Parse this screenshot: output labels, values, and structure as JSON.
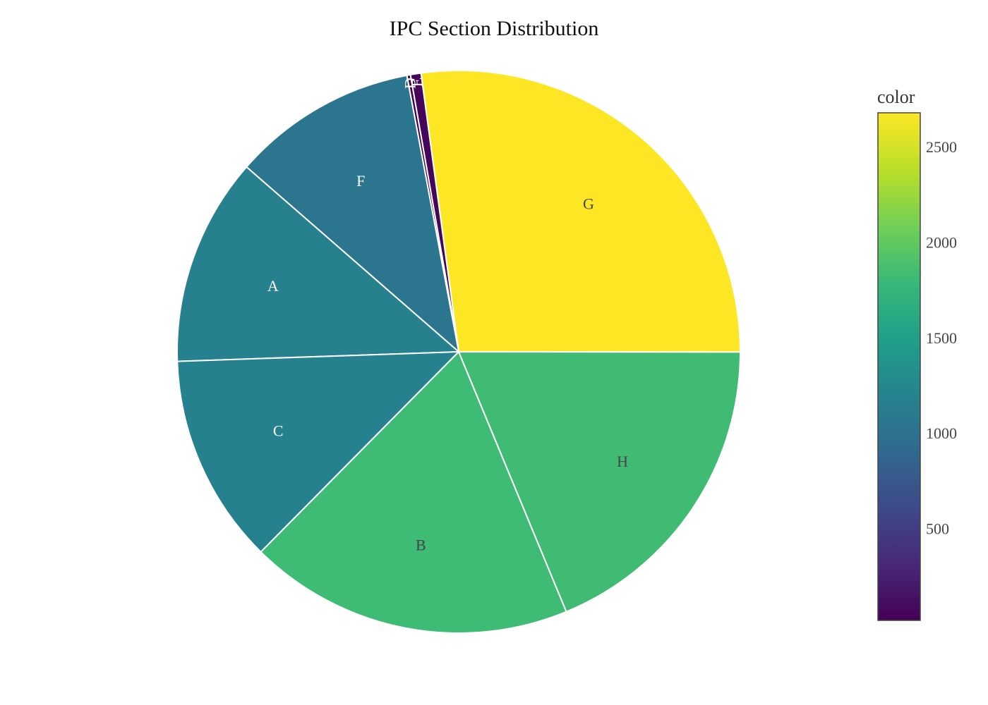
{
  "chart_data": {
    "type": "pie",
    "title": "IPC Section Distribution",
    "slices": [
      {
        "label": "G",
        "value": 2680
      },
      {
        "label": "E",
        "value": 60
      },
      {
        "label": "D",
        "value": 20
      },
      {
        "label": "F",
        "value": 1050
      },
      {
        "label": "A",
        "value": 1180
      },
      {
        "label": "C",
        "value": 1190
      },
      {
        "label": "B",
        "value": 1840
      },
      {
        "label": "H",
        "value": 1850
      }
    ],
    "colorbar": {
      "title": "color",
      "range": [
        20,
        2680
      ],
      "ticks": [
        500,
        1000,
        1500,
        2000,
        2500
      ],
      "colorscale": "viridis"
    },
    "slice_border_color": "#ffffff",
    "legend": "none"
  }
}
